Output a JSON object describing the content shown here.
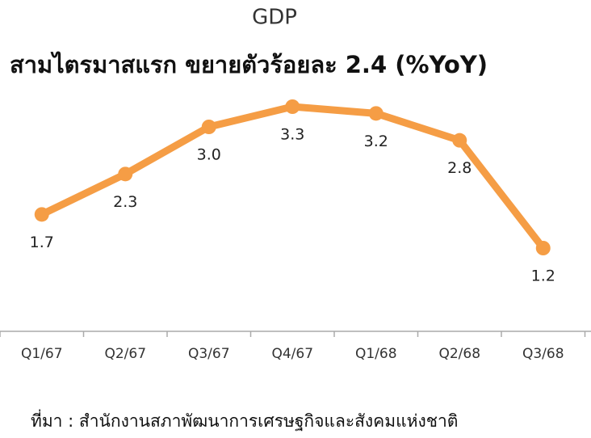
{
  "chart_data": {
    "type": "line",
    "title": "GDP",
    "subtitle": "สามไตรมาสแรก ขยายตัวร้อยละ 2.4 (%YoY)",
    "categories": [
      "Q1/67",
      "Q2/67",
      "Q3/67",
      "Q4/67",
      "Q1/68",
      "Q2/68",
      "Q3/68"
    ],
    "values": [
      1.7,
      2.3,
      3.0,
      3.3,
      3.2,
      2.8,
      1.2
    ],
    "value_labels": [
      "1.7",
      "2.3",
      "3.0",
      "3.3",
      "3.2",
      "2.8",
      "1.2"
    ],
    "color": "#f59d45",
    "source": "ที่มา : สำนักงานสภาพัฒนาการเศรษฐกิจและสังคมแห่งชาติ"
  }
}
